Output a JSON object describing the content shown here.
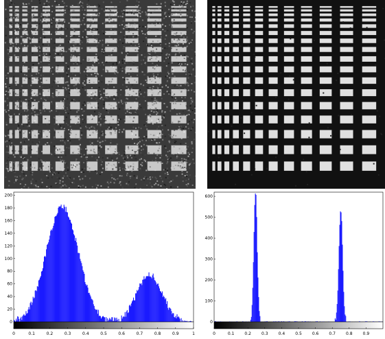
{
  "images": [
    {
      "name": "noisy-grating-image",
      "style": "noisy",
      "background": "#3a3a3a",
      "foreground": "#c8c8c8"
    },
    {
      "name": "restored-grating-image",
      "style": "clean",
      "background": "#111111",
      "foreground": "#e0e0e0"
    }
  ],
  "chart_data": [
    {
      "type": "bar",
      "color": "#1a1aff",
      "xlim": [
        0,
        1
      ],
      "ylim": [
        0,
        205
      ],
      "xticks": [
        "0",
        "0.1",
        "0.2",
        "0.3",
        "0.4",
        "0.5",
        "0.6",
        "0.7",
        "0.8",
        "0.9",
        "1"
      ],
      "yticks": [
        "0",
        "20",
        "40",
        "60",
        "80",
        "100",
        "120",
        "140",
        "160",
        "180",
        "200"
      ],
      "ytick_values": [
        0,
        20,
        40,
        60,
        80,
        100,
        120,
        140,
        160,
        180,
        200
      ],
      "peaks": [
        {
          "center": 0.27,
          "height": 182,
          "width": 0.09
        },
        {
          "center": 0.755,
          "height": 75,
          "width": 0.07
        }
      ],
      "colorbar": "grayscale"
    },
    {
      "type": "bar",
      "color": "#1a1aff",
      "xlim": [
        0,
        1
      ],
      "ylim": [
        0,
        620
      ],
      "xticks": [
        "0",
        "0.1",
        "0.2",
        "0.3",
        "0.4",
        "0.5",
        "0.6",
        "0.7",
        "0.8",
        "0.9"
      ],
      "yticks": [
        "0",
        "100",
        "200",
        "300",
        "400",
        "500",
        "600"
      ],
      "ytick_values": [
        0,
        100,
        200,
        300,
        400,
        500,
        600
      ],
      "peaks": [
        {
          "center": 0.245,
          "height": 620,
          "width": 0.01
        },
        {
          "center": 0.75,
          "height": 545,
          "width": 0.011
        }
      ],
      "colorbar": "grayscale"
    }
  ]
}
